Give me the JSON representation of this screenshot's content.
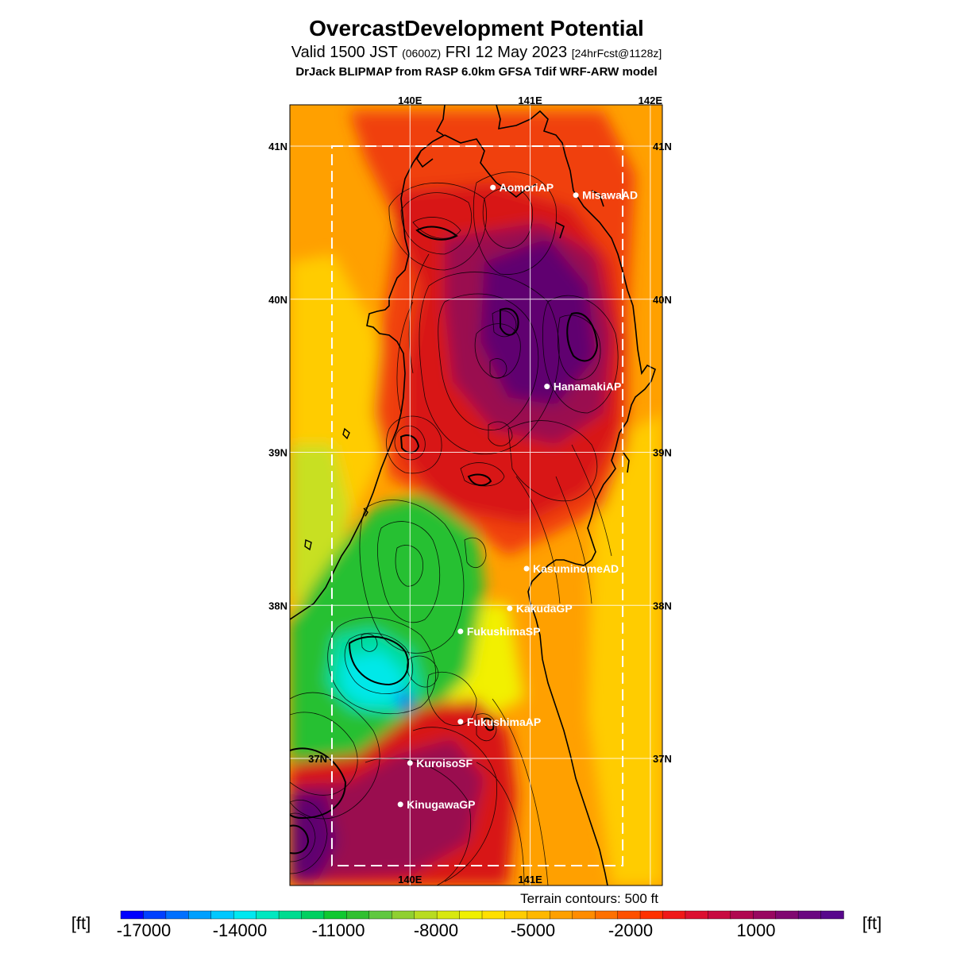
{
  "header": {
    "title": "OvercastDevelopment Potential",
    "valid_prefix": "Valid 1500 JST",
    "valid_utc": "(0600Z)",
    "valid_date": "FRI 12 May 2023",
    "forecast": "[24hrFcst@1128z]",
    "model": "DrJack BLIPMAP from RASP 6.0km GFSA Tdif WRF-ARW model"
  },
  "map": {
    "lon_range": [
      139.0,
      142.1
    ],
    "lat_range": [
      36.17,
      41.27
    ],
    "top_lon_labels": [
      "140E",
      "141E",
      "142E"
    ],
    "bottom_lon_labels": [
      "140E",
      "141E"
    ],
    "left_lat_labels": [
      "41N",
      "40N",
      "39N",
      "38N",
      "37N"
    ],
    "right_lat_labels": [
      "41N",
      "40N",
      "39N",
      "38N",
      "37N"
    ],
    "inner_domain": {
      "lon": [
        139.35,
        141.77
      ],
      "lat": [
        36.3,
        41.0
      ]
    },
    "stations": [
      {
        "name": "AomoriAP",
        "lon": 140.69,
        "lat": 40.73
      },
      {
        "name": "MisawaAD",
        "lon": 141.38,
        "lat": 40.68
      },
      {
        "name": "HanamakiAP",
        "lon": 141.14,
        "lat": 39.43
      },
      {
        "name": "KasuminomeAD",
        "lon": 140.97,
        "lat": 38.24
      },
      {
        "name": "KakudaGP",
        "lon": 140.83,
        "lat": 37.98
      },
      {
        "name": "FukushimaSP",
        "lon": 140.42,
        "lat": 37.83
      },
      {
        "name": "FukushimaAP",
        "lon": 140.42,
        "lat": 37.24
      },
      {
        "name": "KuroisoSF",
        "lon": 140.0,
        "lat": 36.97
      },
      {
        "name": "KinugawaGP",
        "lon": 139.92,
        "lat": 36.7
      }
    ],
    "terrain_note": "Terrain contours: 500 ft"
  },
  "colorbar": {
    "unit": "[ft]",
    "tick_labels": [
      "-17000",
      "-14000",
      "-11000",
      "-8000",
      "-5000",
      "-2000",
      "1000"
    ],
    "colors": [
      "#0000ff",
      "#0040ff",
      "#0070ff",
      "#00a0ff",
      "#00c8ff",
      "#00e8f0",
      "#00e8c0",
      "#00dc90",
      "#00d060",
      "#10c830",
      "#30c030",
      "#60c840",
      "#90d030",
      "#b8dc20",
      "#d8e810",
      "#f0f000",
      "#ffe000",
      "#ffcc00",
      "#ffb800",
      "#ffa000",
      "#ff8c00",
      "#ff7000",
      "#ff5000",
      "#ff3000",
      "#f01818",
      "#dc1030",
      "#c80a40",
      "#b00850",
      "#980860",
      "#800870",
      "#6a0880",
      "#58088c"
    ]
  },
  "legend_colors": {
    "dark_purple": "#600070",
    "magenta": "#9a0a50",
    "red": "#d81818",
    "red_orange": "#f04010",
    "orange": "#ff8000",
    "orange_light": "#ffa000",
    "yellow_orange": "#ffcc00",
    "yellow": "#f2f000",
    "yellow_green": "#c8e020",
    "green": "#28c030",
    "teal": "#00dca0",
    "cyan": "#00e8e8"
  }
}
